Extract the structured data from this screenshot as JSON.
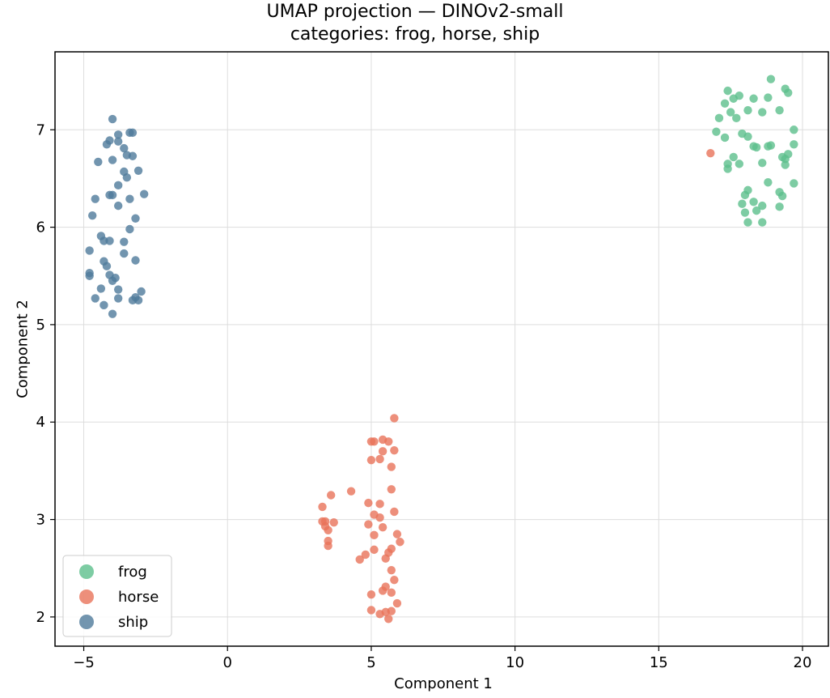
{
  "chart_data": {
    "type": "scatter",
    "title": "UMAP projection — DINOv2-small",
    "subtitle": "categories: frog, horse, ship",
    "xlabel": "Component 1",
    "ylabel": "Component 2",
    "xlim": [
      -6.0,
      20.9
    ],
    "ylim": [
      1.7,
      7.8
    ],
    "xticks": [
      -5,
      0,
      5,
      10,
      15,
      20
    ],
    "xtick_labels": [
      "−5",
      "0",
      "5",
      "10",
      "15",
      "20"
    ],
    "yticks": [
      2,
      3,
      4,
      5,
      6,
      7
    ],
    "ytick_labels": [
      "2",
      "3",
      "4",
      "5",
      "6",
      "7"
    ],
    "grid": true,
    "legend": {
      "placement": "lower-left",
      "entries": [
        "frog",
        "horse",
        "ship"
      ]
    },
    "series": [
      {
        "name": "frog",
        "color": "#5dbf8c",
        "points": [
          [
            17.4,
            7.4
          ],
          [
            17.8,
            7.35
          ],
          [
            18.9,
            7.52
          ],
          [
            19.4,
            7.42
          ],
          [
            19.5,
            7.38
          ],
          [
            17.6,
            7.32
          ],
          [
            17.3,
            7.27
          ],
          [
            18.3,
            7.32
          ],
          [
            18.8,
            7.33
          ],
          [
            17.5,
            7.18
          ],
          [
            18.1,
            7.2
          ],
          [
            18.6,
            7.18
          ],
          [
            19.2,
            7.2
          ],
          [
            17.1,
            7.12
          ],
          [
            17.7,
            7.12
          ],
          [
            17.0,
            6.98
          ],
          [
            17.3,
            6.92
          ],
          [
            17.9,
            6.96
          ],
          [
            18.1,
            6.93
          ],
          [
            19.7,
            7.0
          ],
          [
            18.3,
            6.83
          ],
          [
            18.4,
            6.82
          ],
          [
            18.8,
            6.83
          ],
          [
            18.9,
            6.84
          ],
          [
            19.7,
            6.85
          ],
          [
            17.6,
            6.72
          ],
          [
            19.3,
            6.72
          ],
          [
            19.5,
            6.75
          ],
          [
            19.4,
            6.7
          ],
          [
            17.4,
            6.65
          ],
          [
            17.4,
            6.6
          ],
          [
            17.8,
            6.65
          ],
          [
            18.6,
            6.66
          ],
          [
            19.4,
            6.64
          ],
          [
            18.8,
            6.46
          ],
          [
            19.7,
            6.45
          ],
          [
            18.1,
            6.38
          ],
          [
            18.0,
            6.33
          ],
          [
            19.2,
            6.36
          ],
          [
            19.3,
            6.32
          ],
          [
            17.9,
            6.24
          ],
          [
            18.3,
            6.26
          ],
          [
            18.6,
            6.22
          ],
          [
            18.4,
            6.17
          ],
          [
            18.0,
            6.15
          ],
          [
            19.2,
            6.21
          ],
          [
            18.1,
            6.05
          ],
          [
            18.6,
            6.05
          ]
        ]
      },
      {
        "name": "horse",
        "color": "#e8735a",
        "points": [
          [
            16.8,
            6.76
          ],
          [
            5.8,
            4.04
          ],
          [
            5.0,
            3.8
          ],
          [
            5.1,
            3.8
          ],
          [
            5.4,
            3.82
          ],
          [
            5.6,
            3.8
          ],
          [
            5.8,
            3.71
          ],
          [
            5.4,
            3.7
          ],
          [
            5.0,
            3.61
          ],
          [
            5.3,
            3.62
          ],
          [
            5.7,
            3.54
          ],
          [
            4.3,
            3.29
          ],
          [
            3.6,
            3.25
          ],
          [
            5.7,
            3.31
          ],
          [
            4.9,
            3.17
          ],
          [
            5.3,
            3.16
          ],
          [
            3.3,
            3.13
          ],
          [
            5.1,
            3.05
          ],
          [
            5.3,
            3.02
          ],
          [
            5.8,
            3.08
          ],
          [
            3.3,
            2.98
          ],
          [
            3.4,
            2.98
          ],
          [
            3.7,
            2.97
          ],
          [
            3.4,
            2.93
          ],
          [
            3.5,
            2.89
          ],
          [
            4.9,
            2.95
          ],
          [
            5.4,
            2.92
          ],
          [
            5.1,
            2.84
          ],
          [
            5.9,
            2.85
          ],
          [
            3.5,
            2.78
          ],
          [
            3.5,
            2.73
          ],
          [
            6.0,
            2.77
          ],
          [
            4.8,
            2.64
          ],
          [
            5.1,
            2.69
          ],
          [
            5.7,
            2.7
          ],
          [
            5.6,
            2.66
          ],
          [
            5.5,
            2.6
          ],
          [
            4.6,
            2.59
          ],
          [
            5.7,
            2.48
          ],
          [
            5.8,
            2.38
          ],
          [
            5.5,
            2.31
          ],
          [
            5.4,
            2.27
          ],
          [
            5.0,
            2.23
          ],
          [
            5.7,
            2.25
          ],
          [
            5.9,
            2.14
          ],
          [
            5.0,
            2.07
          ],
          [
            5.3,
            2.03
          ],
          [
            5.5,
            2.05
          ],
          [
            5.7,
            2.06
          ],
          [
            5.6,
            1.98
          ]
        ]
      },
      {
        "name": "ship",
        "color": "#4f7a9b",
        "points": [
          [
            -4.0,
            7.11
          ],
          [
            -3.3,
            6.97
          ],
          [
            -3.4,
            6.97
          ],
          [
            -3.8,
            6.95
          ],
          [
            -4.1,
            6.89
          ],
          [
            -4.2,
            6.85
          ],
          [
            -3.8,
            6.88
          ],
          [
            -3.6,
            6.81
          ],
          [
            -3.5,
            6.74
          ],
          [
            -3.3,
            6.73
          ],
          [
            -4.5,
            6.67
          ],
          [
            -4.0,
            6.69
          ],
          [
            -3.1,
            6.58
          ],
          [
            -3.6,
            6.57
          ],
          [
            -3.5,
            6.51
          ],
          [
            -3.8,
            6.43
          ],
          [
            -2.9,
            6.34
          ],
          [
            -4.1,
            6.33
          ],
          [
            -4.0,
            6.33
          ],
          [
            -4.6,
            6.29
          ],
          [
            -3.4,
            6.29
          ],
          [
            -3.8,
            6.22
          ],
          [
            -4.7,
            6.12
          ],
          [
            -3.2,
            6.09
          ],
          [
            -3.4,
            5.98
          ],
          [
            -4.4,
            5.91
          ],
          [
            -4.3,
            5.86
          ],
          [
            -4.1,
            5.86
          ],
          [
            -3.6,
            5.85
          ],
          [
            -4.8,
            5.76
          ],
          [
            -3.6,
            5.73
          ],
          [
            -3.2,
            5.66
          ],
          [
            -4.3,
            5.65
          ],
          [
            -4.2,
            5.6
          ],
          [
            -4.8,
            5.53
          ],
          [
            -4.8,
            5.5
          ],
          [
            -4.1,
            5.51
          ],
          [
            -3.9,
            5.48
          ],
          [
            -4.0,
            5.45
          ],
          [
            -4.4,
            5.37
          ],
          [
            -3.8,
            5.36
          ],
          [
            -3.0,
            5.34
          ],
          [
            -4.6,
            5.27
          ],
          [
            -3.8,
            5.27
          ],
          [
            -3.2,
            5.28
          ],
          [
            -3.3,
            5.25
          ],
          [
            -3.1,
            5.25
          ],
          [
            -4.3,
            5.2
          ],
          [
            -4.0,
            5.11
          ]
        ]
      }
    ]
  }
}
